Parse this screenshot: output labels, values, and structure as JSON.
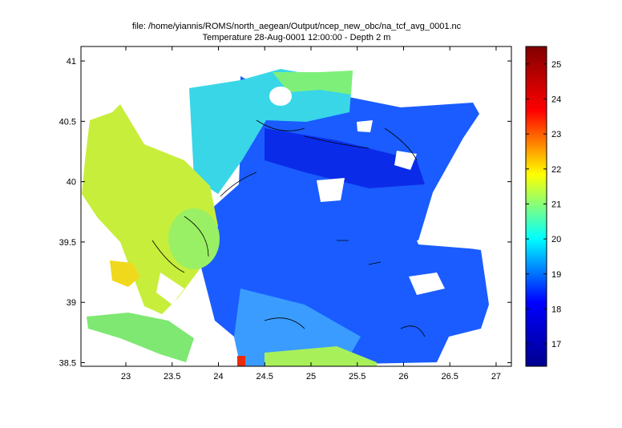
{
  "chart_data": {
    "type": "map",
    "title_lines": [
      "file: /home/yiannis/ROMS/north_aegean/Output/ncep_new_obc/na_tcf_avg_0001.nc",
      "Temperature 28-Aug-0001 12:00:00  - Depth 2 m"
    ],
    "xlim": [
      22.515,
      27.165
    ],
    "xticks": [
      23,
      23.5,
      24,
      24.5,
      25,
      25.5,
      26,
      26.5,
      27
    ],
    "ylim": [
      38.47,
      41.12
    ],
    "yticks": [
      38.5,
      39,
      39.5,
      40,
      40.5,
      41
    ],
    "clim": [
      16.36,
      25.5
    ],
    "cticks": [
      17,
      18,
      19,
      20,
      21,
      22,
      23,
      24,
      25
    ],
    "colormap": [
      "#00008f",
      "#0000ff",
      "#00ffff",
      "#ffff00",
      "#ff0000",
      "#800000"
    ]
  }
}
